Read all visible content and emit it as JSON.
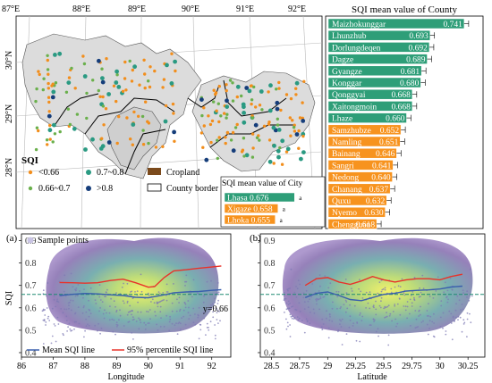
{
  "map": {
    "lon_ticks": [
      "87°E",
      "88°E",
      "89°E",
      "90°E",
      "91°E",
      "92°E"
    ],
    "lat_ticks": [
      "30°N",
      "29°N",
      "28°N"
    ],
    "legend": {
      "title": "SQI",
      "items": [
        {
          "label": "<0.66",
          "color": "#f28e1c",
          "shape": "dot-small"
        },
        {
          "label": "0.7~0.8",
          "color": "#2a9a82",
          "shape": "dot"
        },
        {
          "label": "Cropland",
          "color": "#7b4a1c",
          "shape": "rect"
        },
        {
          "label": "0.66~0.7",
          "color": "#6ab04c",
          "shape": "dot-small"
        },
        {
          "label": ">0.8",
          "color": "#153d7a",
          "shape": "dot"
        },
        {
          "label": "County border",
          "color": "#000000",
          "shape": "outline"
        }
      ]
    }
  },
  "chart_data": [
    {
      "type": "bar",
      "orientation": "horizontal",
      "title": "SQI mean value of County",
      "categories": [
        "Maizhokunggar",
        "Lhunzhub",
        "Dorlungdeqen",
        "Dagze",
        "Gyangze",
        "Konggar",
        "Qonggyai",
        "Xaitongmoin",
        "Lhaze",
        "Samzhubze",
        "Namling",
        "Bainang",
        "Sangri",
        "Nedong",
        "Chanang",
        "Quxu",
        "Nyemo",
        "Chengguan"
      ],
      "values": [
        0.741,
        0.693,
        0.692,
        0.689,
        0.681,
        0.68,
        0.668,
        0.668,
        0.66,
        0.652,
        0.651,
        0.646,
        0.641,
        0.64,
        0.637,
        0.632,
        0.63,
        0.618
      ],
      "value_labels": [
        "0.741",
        "0.693",
        "0.692",
        "0.689",
        "0.681",
        "0.680",
        "0.668",
        "0.668",
        "0.660",
        "0.652",
        "0.651",
        "0.646",
        "0.641",
        "0.640",
        "0.637",
        "0.632",
        "0.630",
        "0.618"
      ],
      "colors": {
        "above": "#2e9e78",
        "below": "#f7931e"
      },
      "xlim": [
        0.55,
        0.76
      ]
    },
    {
      "type": "bar",
      "orientation": "horizontal",
      "title": "SQI mean value of City",
      "categories": [
        "Lhasa",
        "Xigaze",
        "Lhoka"
      ],
      "values": [
        0.676,
        0.658,
        0.655
      ],
      "value_labels": [
        "0.676",
        "0.658",
        "0.655"
      ],
      "group_labels": [
        "a",
        "a",
        "a"
      ],
      "colors": {
        "above": "#2e9e78",
        "below": "#f7931e"
      },
      "xlim": [
        0.6,
        0.7
      ]
    },
    {
      "type": "line",
      "panel_label": "(a)",
      "xlabel": "Longitude",
      "ylabel": "SQI",
      "x_ticks": [
        "86",
        "87",
        "88",
        "89",
        "90",
        "91",
        "92"
      ],
      "y_ticks": [
        "0.4",
        "0.5",
        "0.6",
        "0.7",
        "0.8",
        "0.9"
      ],
      "xlim": [
        86,
        92.6
      ],
      "ylim": [
        0.38,
        0.93
      ],
      "reference_line": {
        "y": 0.66,
        "label": "y=0.66"
      },
      "series": [
        {
          "name": "Mean SQI line",
          "color": "#3a5fad",
          "x": [
            87.2,
            87.6,
            88.0,
            88.4,
            88.8,
            89.2,
            89.6,
            90.0,
            90.4,
            90.8,
            91.2,
            91.6,
            92.0,
            92.3
          ],
          "y": [
            0.655,
            0.66,
            0.664,
            0.662,
            0.658,
            0.655,
            0.647,
            0.645,
            0.655,
            0.667,
            0.671,
            0.673,
            0.678,
            0.681
          ]
        },
        {
          "name": "95% percentile SQI line",
          "color": "#e8322a",
          "x": [
            87.2,
            87.6,
            88.0,
            88.4,
            88.8,
            89.2,
            89.6,
            90.0,
            90.2,
            90.5,
            90.8,
            91.2,
            91.6,
            92.0,
            92.3
          ],
          "y": [
            0.713,
            0.712,
            0.71,
            0.712,
            0.722,
            0.728,
            0.712,
            0.692,
            0.695,
            0.735,
            0.765,
            0.77,
            0.777,
            0.782,
            0.787
          ]
        }
      ],
      "legend": [
        "Sample points",
        "Mean SQI line",
        "95% percentile SQI line"
      ]
    },
    {
      "type": "line",
      "panel_label": "(b)",
      "xlabel": "Latitude",
      "ylabel": "",
      "x_ticks": [
        "28.5",
        "28.75",
        "29",
        "29.25",
        "29.5",
        "29.75",
        "30",
        "30.25"
      ],
      "y_ticks": [
        "0.4",
        "0.5",
        "0.6",
        "0.7",
        "0.8",
        "0.9"
      ],
      "xlim": [
        28.4,
        30.4
      ],
      "ylim": [
        0.38,
        0.93
      ],
      "reference_line": {
        "y": 0.66
      },
      "series": [
        {
          "name": "Mean SQI line",
          "color": "#3a5fad",
          "x": [
            28.8,
            28.9,
            29.0,
            29.1,
            29.2,
            29.3,
            29.4,
            29.5,
            29.6,
            29.7,
            29.8,
            29.9,
            30.0,
            30.1,
            30.2
          ],
          "y": [
            0.646,
            0.665,
            0.671,
            0.655,
            0.637,
            0.632,
            0.646,
            0.66,
            0.665,
            0.675,
            0.678,
            0.68,
            0.684,
            0.693,
            0.697
          ]
        },
        {
          "name": "95% percentile SQI line",
          "color": "#e8322a",
          "x": [
            28.8,
            28.9,
            29.0,
            29.1,
            29.2,
            29.3,
            29.4,
            29.5,
            29.6,
            29.7,
            29.8,
            29.9,
            30.0,
            30.1,
            30.2
          ],
          "y": [
            0.7,
            0.73,
            0.735,
            0.715,
            0.705,
            0.72,
            0.74,
            0.725,
            0.715,
            0.725,
            0.73,
            0.73,
            0.725,
            0.74,
            0.75
          ]
        }
      ]
    }
  ]
}
